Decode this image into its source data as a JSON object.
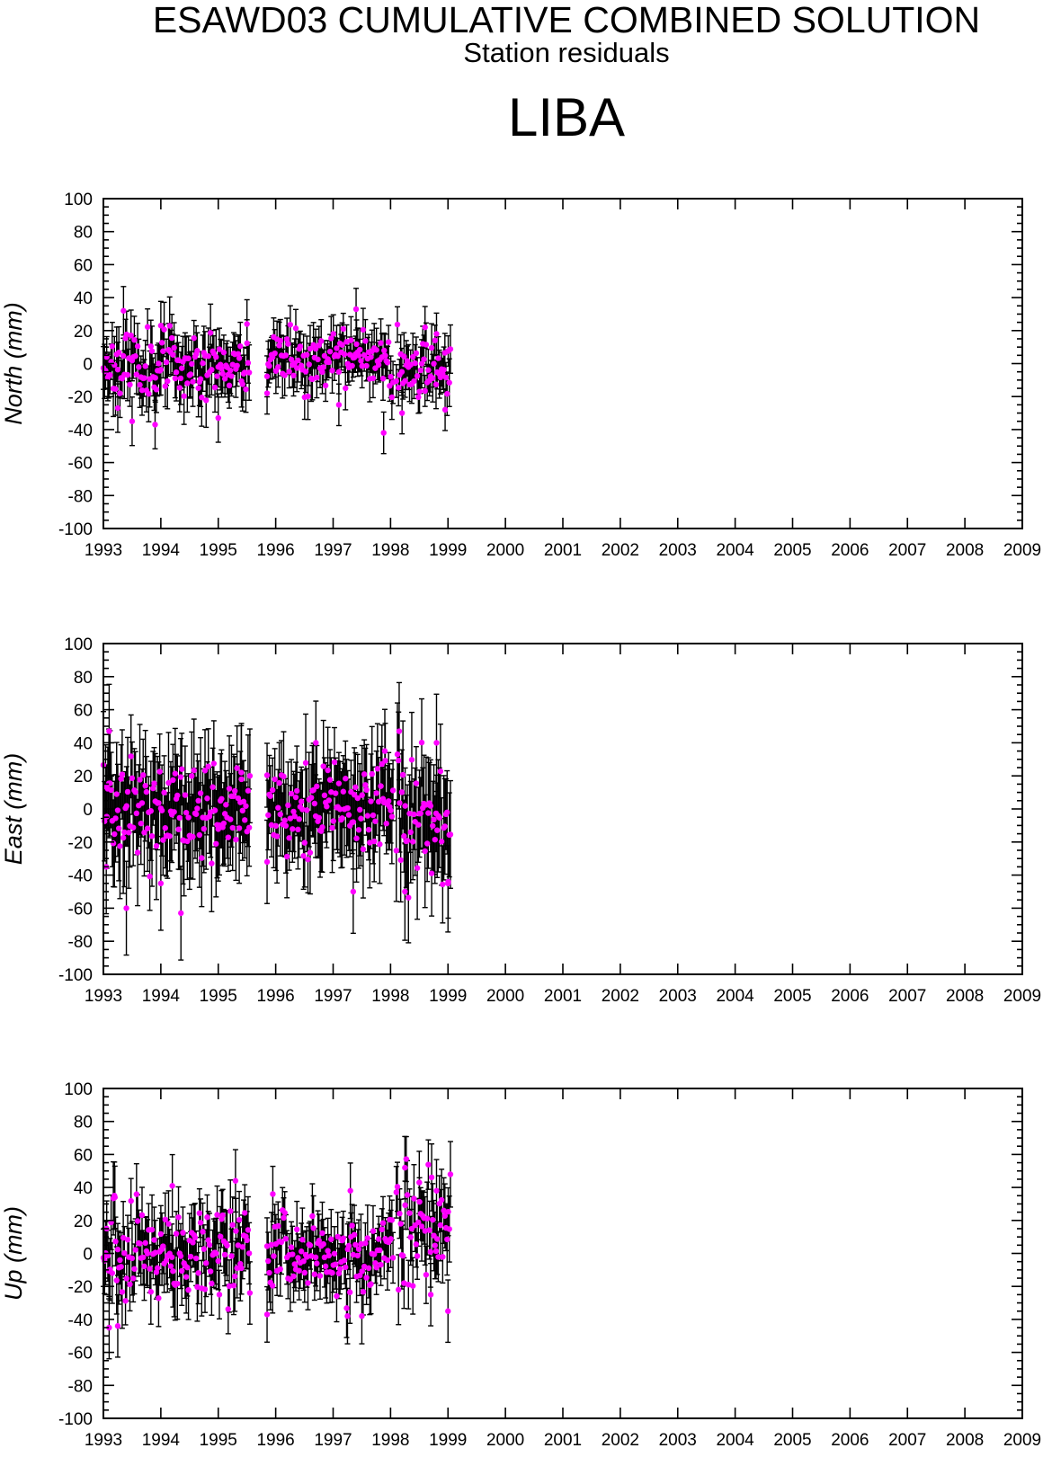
{
  "header": {
    "title": "ESAWD03 CUMULATIVE COMBINED SOLUTION",
    "subtitle": "Station residuals",
    "station": "LIBA"
  },
  "colors": {
    "point": "#ff00ff",
    "errorbar": "#000000",
    "axes": "#000000"
  },
  "chart_data": [
    {
      "type": "scatter",
      "ylabel": "North (mm)",
      "xlim": [
        1993,
        2009
      ],
      "ylim": [
        -100,
        100
      ],
      "x_ticks": [
        "1993",
        "1994",
        "1995",
        "1996",
        "1997",
        "1998",
        "1999",
        "2000",
        "2001",
        "2002",
        "2003",
        "2004",
        "2005",
        "2006",
        "2007",
        "2008",
        "2009"
      ],
      "y_ticks": [
        "100",
        "80",
        "60",
        "40",
        "20",
        "0",
        "-20",
        "-40",
        "-60",
        "-80",
        "-100"
      ],
      "segments": [
        {
          "start": 1993.0,
          "end": 1995.55,
          "center": 0,
          "spread": 12,
          "err": 14,
          "seed": 11,
          "extremes": [
            [
              1993.25,
              -27
            ],
            [
              1993.5,
              -35
            ],
            [
              1993.35,
              32
            ],
            [
              1993.9,
              -37
            ],
            [
              1994.0,
              23
            ],
            [
              1995.0,
              -33
            ],
            [
              1995.5,
              24
            ]
          ]
        },
        {
          "start": 1995.85,
          "end": 1998.05,
          "center": 2,
          "spread": 11,
          "err": 12,
          "seed": 23,
          "extremes": [
            [
              1995.85,
              -18
            ],
            [
              1997.4,
              33
            ],
            [
              1997.88,
              -42
            ],
            [
              1997.1,
              -25
            ]
          ]
        },
        {
          "start": 1998.1,
          "end": 1999.05,
          "center": 0,
          "spread": 12,
          "err": 12,
          "seed": 37,
          "extremes": [
            [
              1998.2,
              -30
            ],
            [
              1998.6,
              22
            ],
            [
              1998.95,
              -28
            ],
            [
              1998.8,
              18
            ]
          ]
        }
      ]
    },
    {
      "type": "scatter",
      "ylabel": "East (mm)",
      "xlim": [
        1993,
        2009
      ],
      "ylim": [
        -100,
        100
      ],
      "x_ticks": [
        "1993",
        "1994",
        "1995",
        "1996",
        "1997",
        "1998",
        "1999",
        "2000",
        "2001",
        "2002",
        "2003",
        "2004",
        "2005",
        "2006",
        "2007",
        "2008",
        "2009"
      ],
      "y_ticks": [
        "100",
        "80",
        "60",
        "40",
        "20",
        "0",
        "-20",
        "-40",
        "-60",
        "-80",
        "-100"
      ],
      "segments": [
        {
          "start": 1993.0,
          "end": 1995.55,
          "center": 0,
          "spread": 20,
          "err": 27,
          "seed": 41,
          "extremes": [
            [
              1993.1,
              47
            ],
            [
              1993.05,
              -35
            ],
            [
              1993.4,
              -60
            ],
            [
              1994.35,
              -63
            ],
            [
              1994.0,
              -45
            ],
            [
              1995.4,
              22
            ],
            [
              1995.55,
              20
            ]
          ]
        },
        {
          "start": 1995.85,
          "end": 1998.05,
          "center": 0,
          "spread": 18,
          "err": 24,
          "seed": 53,
          "extremes": [
            [
              1995.85,
              -32
            ],
            [
              1996.7,
              40
            ],
            [
              1997.35,
              -50
            ],
            [
              1997.9,
              35
            ]
          ]
        },
        {
          "start": 1998.1,
          "end": 1999.05,
          "center": -5,
          "spread": 25,
          "err": 28,
          "seed": 67,
          "extremes": [
            [
              1998.25,
              -50
            ],
            [
              1998.15,
              47
            ],
            [
              1998.8,
              40
            ],
            [
              1999.0,
              -45
            ]
          ]
        }
      ]
    },
    {
      "type": "scatter",
      "ylabel": "Up (mm)",
      "xlim": [
        1993,
        2009
      ],
      "ylim": [
        -100,
        100
      ],
      "x_ticks": [
        "1993",
        "1994",
        "1995",
        "1996",
        "1997",
        "1998",
        "1999",
        "2000",
        "2001",
        "2002",
        "2003",
        "2004",
        "2005",
        "2006",
        "2007",
        "2008",
        "2009"
      ],
      "y_ticks": [
        "100",
        "80",
        "60",
        "40",
        "20",
        "0",
        "-20",
        "-40",
        "-60",
        "-80",
        "-100"
      ],
      "segments": [
        {
          "start": 1993.0,
          "end": 1995.55,
          "center": 2,
          "spread": 18,
          "err": 18,
          "seed": 71,
          "extremes": [
            [
              1993.1,
              -45
            ],
            [
              1993.25,
              -44
            ],
            [
              1993.2,
              34
            ],
            [
              1994.2,
              41
            ],
            [
              1995.3,
              44
            ],
            [
              1995.55,
              -24
            ]
          ]
        },
        {
          "start": 1995.85,
          "end": 1998.05,
          "center": -2,
          "spread": 14,
          "err": 16,
          "seed": 83,
          "extremes": [
            [
              1995.85,
              -37
            ],
            [
              1995.95,
              36
            ],
            [
              1997.25,
              -38
            ],
            [
              1997.5,
              -38
            ],
            [
              1997.3,
              38
            ]
          ]
        },
        {
          "start": 1998.1,
          "end": 1999.05,
          "center": 12,
          "spread": 22,
          "err": 18,
          "seed": 97,
          "extremes": [
            [
              1998.25,
              52
            ],
            [
              1998.5,
              43
            ],
            [
              1998.8,
              38
            ],
            [
              1999.0,
              -35
            ],
            [
              1998.7,
              -25
            ]
          ]
        }
      ]
    }
  ]
}
